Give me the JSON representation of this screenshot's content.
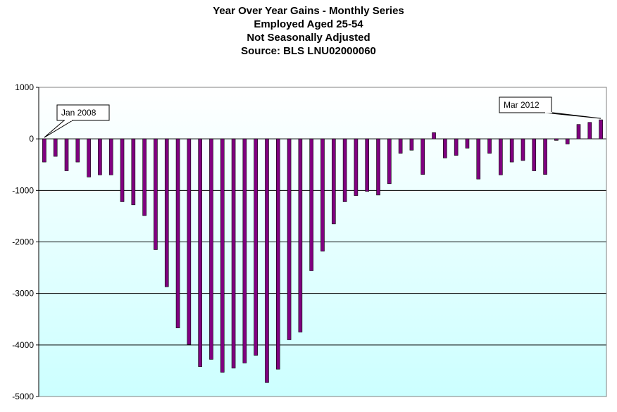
{
  "chart_data": {
    "type": "bar",
    "title_lines": [
      "Year Over Year Gains - Monthly Series",
      "Employed Aged 25-54",
      "Not Seasonally Adjusted",
      "Source: BLS LNU02000060"
    ],
    "xlabel": "",
    "ylabel": "",
    "ylim": [
      -5000,
      1000
    ],
    "yticks": [
      1000,
      0,
      -1000,
      -2000,
      -3000,
      -4000,
      -5000
    ],
    "grid": true,
    "bar_color": "#800080",
    "background_gradient": [
      "#ffffff",
      "#ccffff"
    ],
    "annotations": [
      {
        "text": "Jan 2008",
        "index": 0
      },
      {
        "text": "Mar 2012",
        "index": 50
      }
    ],
    "values": [
      -450,
      -340,
      -620,
      -450,
      -740,
      -700,
      -700,
      -1220,
      -1280,
      -1490,
      -2150,
      -2870,
      -3670,
      -3990,
      -4420,
      -4280,
      -4530,
      -4450,
      -4350,
      -4200,
      -4730,
      -4470,
      -3900,
      -3750,
      -2560,
      -2180,
      -1650,
      -1220,
      -1100,
      -1020,
      -1090,
      -870,
      -280,
      -220,
      -690,
      120,
      -370,
      -320,
      -180,
      -780,
      -280,
      -700,
      -450,
      -420,
      -620,
      -690,
      -30,
      -100,
      280,
      320,
      370
    ]
  }
}
